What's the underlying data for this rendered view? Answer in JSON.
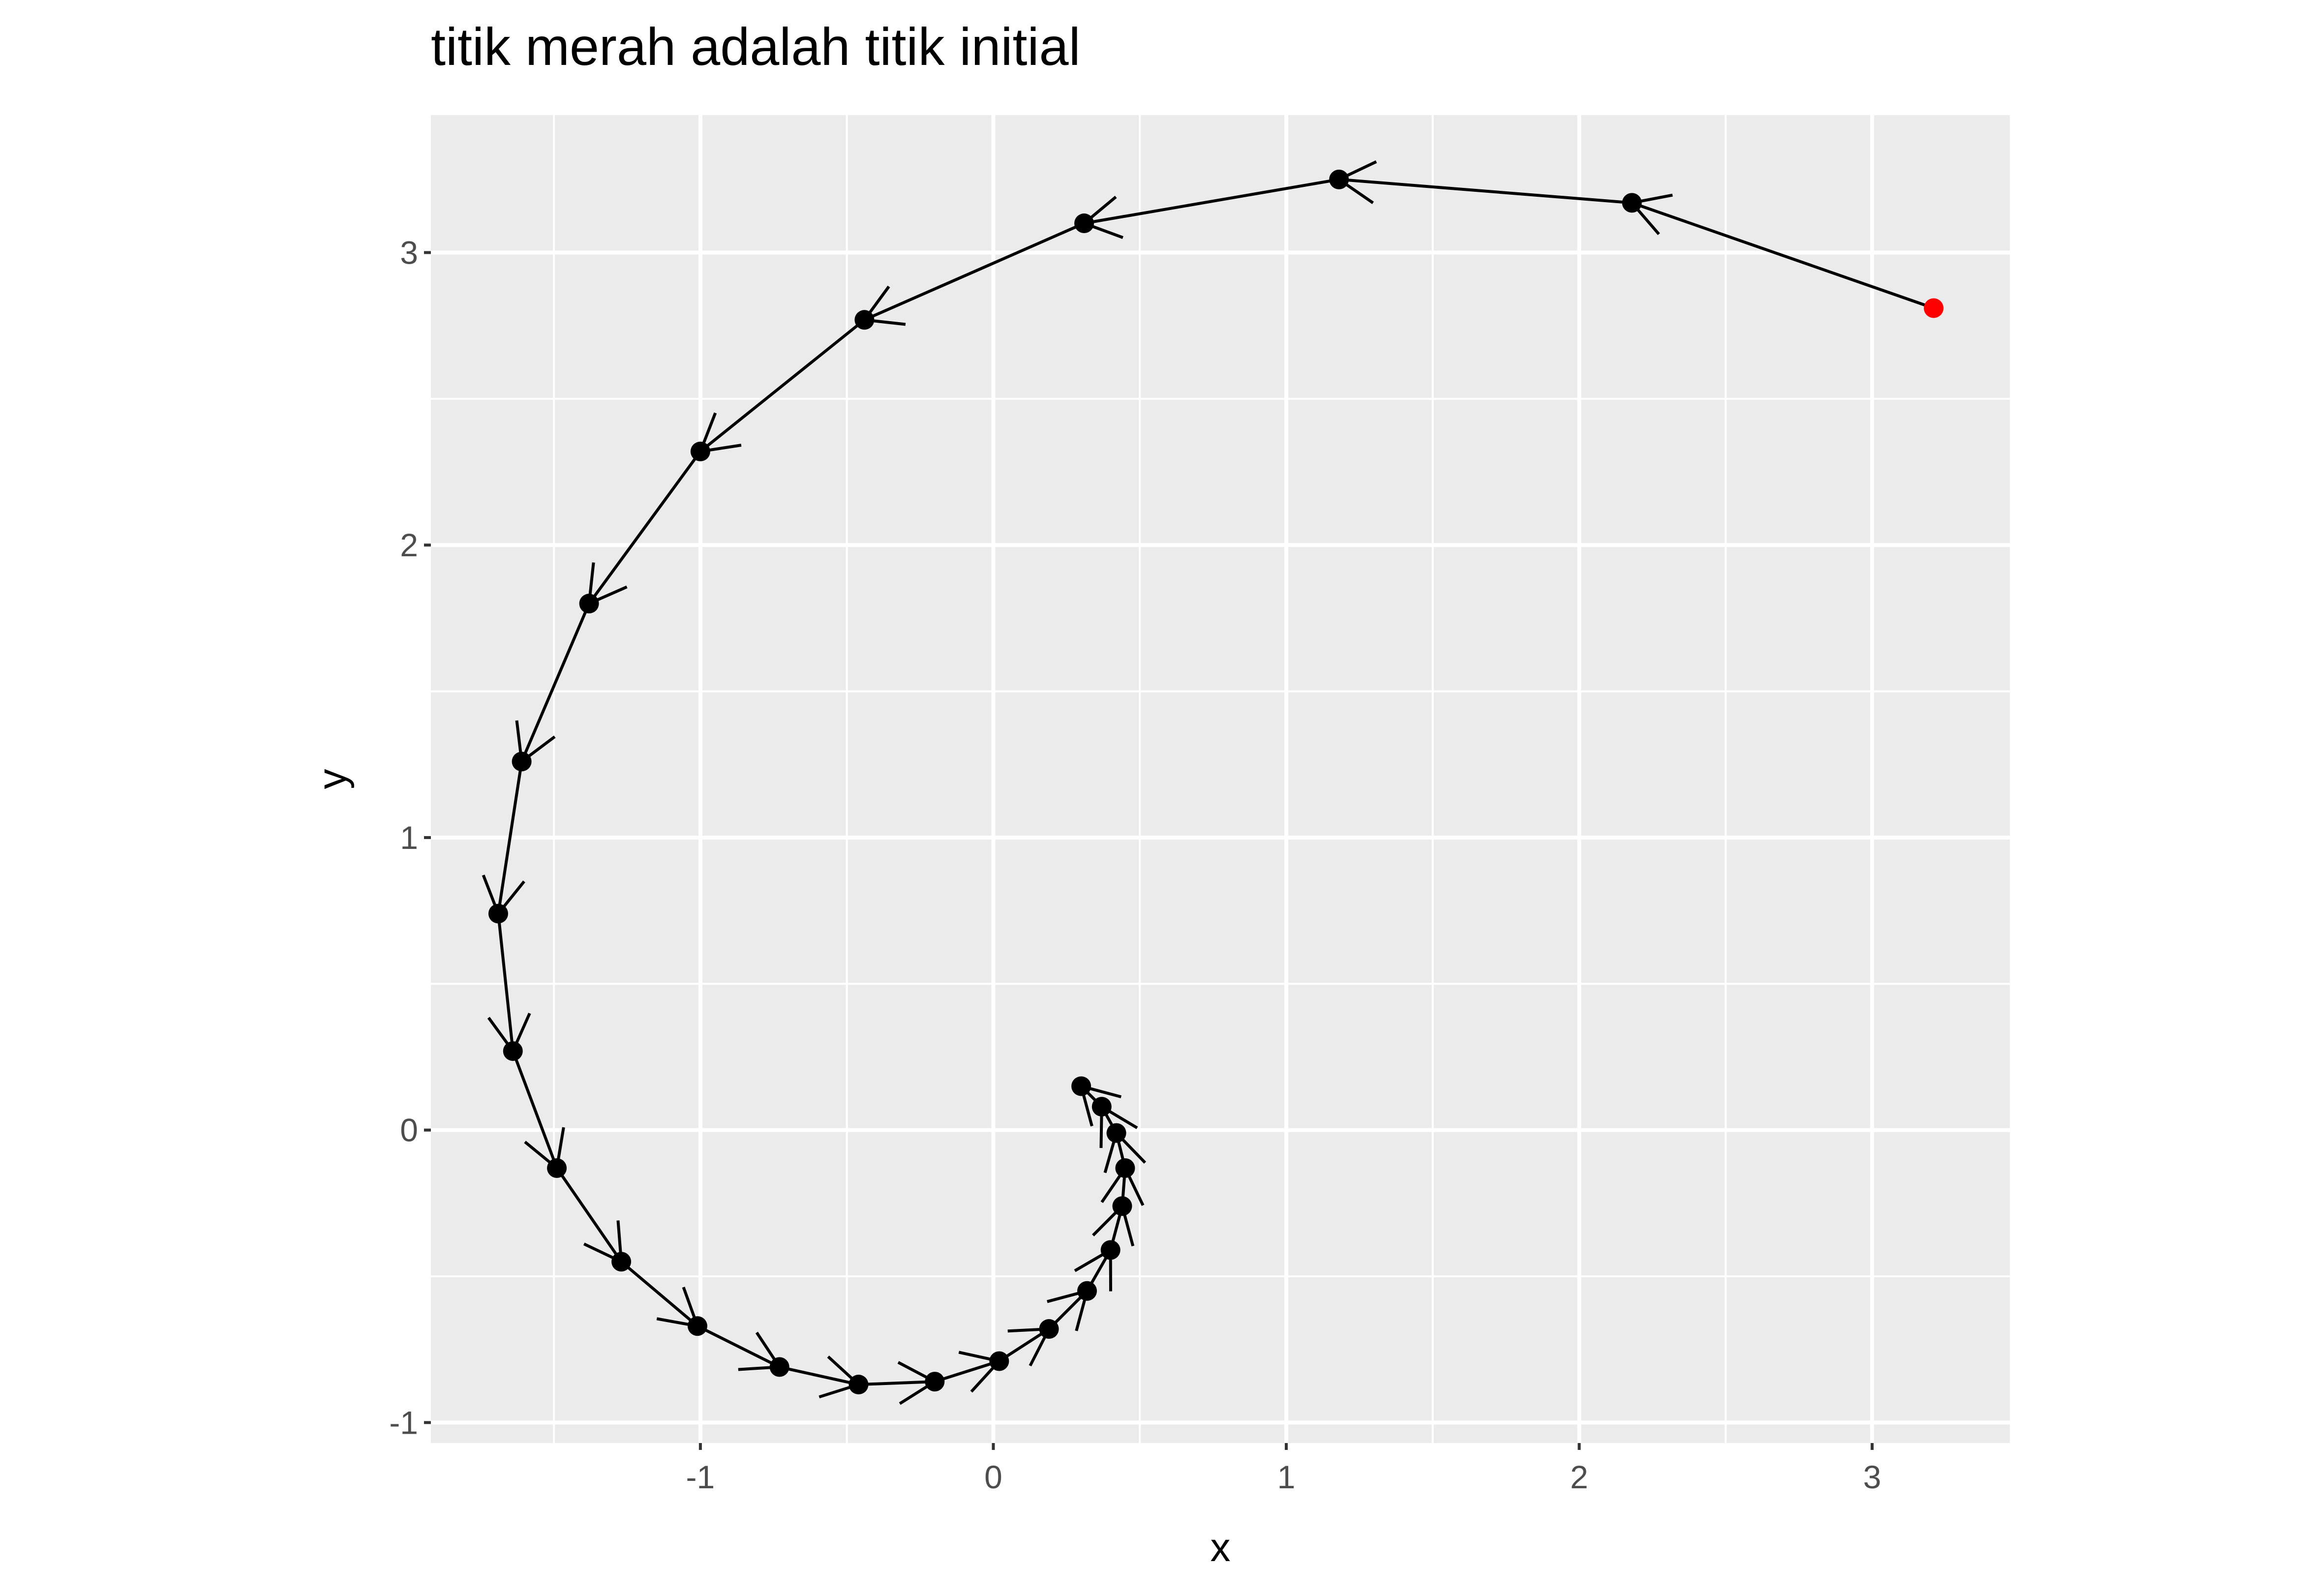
{
  "chart_data": {
    "type": "scatter",
    "title": "titik merah adalah titik initial",
    "xlabel": "x",
    "ylabel": "y",
    "xlim": [
      -1.92,
      3.47
    ],
    "ylim": [
      -1.07,
      3.47
    ],
    "x_ticks": [
      -1,
      0,
      1,
      2,
      3
    ],
    "x_tick_labels": [
      "-1",
      "0",
      "1",
      "2",
      "3"
    ],
    "y_ticks": [
      -1,
      0,
      1,
      2,
      3
    ],
    "y_tick_labels": [
      "-1",
      "0",
      "1",
      "2",
      "3"
    ],
    "grid": true,
    "legend": "none",
    "colors": {
      "panel_background": "#EBEBEB",
      "grid": "#FFFFFF",
      "path": "#000000",
      "points": "#000000",
      "initial_point": "#FF0000",
      "tick_label": "#4D4D4D",
      "title": "#000000"
    },
    "series": [
      {
        "x": [
          3.21,
          2.18,
          1.18,
          0.31,
          -0.44,
          -1.0,
          -1.38,
          -1.61,
          -1.69,
          -1.64,
          -1.49,
          -1.27,
          -1.01,
          -0.73,
          -0.46,
          -0.2,
          0.02,
          0.19,
          0.32,
          0.4,
          0.44,
          0.45,
          0.42,
          0.37,
          0.3
        ],
        "y": [
          2.81,
          3.17,
          3.25,
          3.1,
          2.77,
          2.32,
          1.8,
          1.26,
          0.74,
          0.27,
          -0.13,
          -0.45,
          -0.67,
          -0.81,
          -0.87,
          -0.86,
          -0.79,
          -0.68,
          -0.55,
          -0.41,
          -0.26,
          -0.13,
          -0.01,
          0.08,
          0.15
        ]
      }
    ],
    "initial_point": {
      "x": 3.21,
      "y": 2.81
    }
  }
}
